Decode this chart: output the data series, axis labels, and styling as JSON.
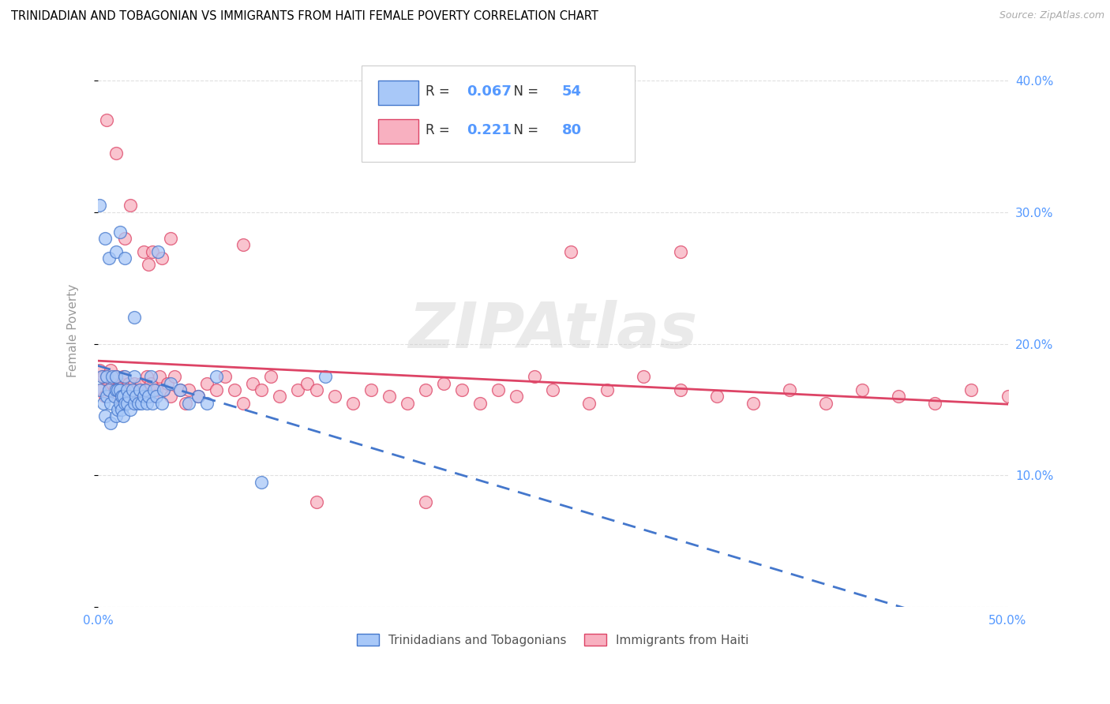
{
  "title": "TRINIDADIAN AND TOBAGONIAN VS IMMIGRANTS FROM HAITI FEMALE POVERTY CORRELATION CHART",
  "source": "Source: ZipAtlas.com",
  "ylabel": "Female Poverty",
  "xlim": [
    0.0,
    0.5
  ],
  "ylim": [
    0.0,
    0.42
  ],
  "legend_r1_val": "0.067",
  "legend_n1_val": "54",
  "legend_r2_val": "0.221",
  "legend_n2_val": "80",
  "series1_color": "#a8c8f8",
  "series2_color": "#f8b0c0",
  "series1_label": "Trinidadians and Tobagonians",
  "series2_label": "Immigrants from Haiti",
  "line1_color": "#4477cc",
  "line2_color": "#dd4466",
  "watermark": "ZIPAtlas",
  "axis_label_color": "#5599ff",
  "background_color": "#ffffff",
  "grid_color": "#cccccc",
  "series1_x": [
    0.001,
    0.002,
    0.003,
    0.004,
    0.005,
    0.005,
    0.006,
    0.007,
    0.007,
    0.008,
    0.009,
    0.01,
    0.01,
    0.01,
    0.011,
    0.011,
    0.012,
    0.012,
    0.013,
    0.013,
    0.014,
    0.014,
    0.015,
    0.015,
    0.016,
    0.016,
    0.017,
    0.018,
    0.019,
    0.02,
    0.02,
    0.021,
    0.022,
    0.023,
    0.024,
    0.025,
    0.026,
    0.027,
    0.028,
    0.029,
    0.03,
    0.031,
    0.032,
    0.033,
    0.035,
    0.036,
    0.04,
    0.045,
    0.05,
    0.055,
    0.06,
    0.065,
    0.09,
    0.125
  ],
  "series1_y": [
    0.165,
    0.175,
    0.155,
    0.145,
    0.16,
    0.175,
    0.165,
    0.14,
    0.155,
    0.175,
    0.16,
    0.145,
    0.165,
    0.175,
    0.15,
    0.165,
    0.155,
    0.165,
    0.15,
    0.16,
    0.145,
    0.16,
    0.155,
    0.175,
    0.155,
    0.165,
    0.16,
    0.15,
    0.165,
    0.155,
    0.175,
    0.16,
    0.155,
    0.165,
    0.155,
    0.16,
    0.165,
    0.155,
    0.16,
    0.175,
    0.155,
    0.165,
    0.16,
    0.27,
    0.155,
    0.165,
    0.17,
    0.165,
    0.155,
    0.16,
    0.155,
    0.175,
    0.095,
    0.175
  ],
  "series1_outliers_x": [
    0.001,
    0.004,
    0.006,
    0.01,
    0.012,
    0.015,
    0.02
  ],
  "series1_outliers_y": [
    0.305,
    0.28,
    0.265,
    0.27,
    0.285,
    0.265,
    0.22
  ],
  "series2_x": [
    0.001,
    0.002,
    0.003,
    0.004,
    0.005,
    0.006,
    0.007,
    0.008,
    0.009,
    0.01,
    0.011,
    0.012,
    0.013,
    0.014,
    0.015,
    0.016,
    0.017,
    0.018,
    0.019,
    0.02,
    0.021,
    0.022,
    0.023,
    0.024,
    0.025,
    0.026,
    0.027,
    0.028,
    0.029,
    0.03,
    0.032,
    0.034,
    0.036,
    0.038,
    0.04,
    0.042,
    0.045,
    0.048,
    0.05,
    0.055,
    0.06,
    0.065,
    0.07,
    0.075,
    0.08,
    0.085,
    0.09,
    0.095,
    0.1,
    0.11,
    0.115,
    0.12,
    0.13,
    0.14,
    0.15,
    0.16,
    0.17,
    0.18,
    0.19,
    0.2,
    0.21,
    0.22,
    0.23,
    0.24,
    0.25,
    0.26,
    0.27,
    0.28,
    0.3,
    0.32,
    0.34,
    0.36,
    0.38,
    0.4,
    0.42,
    0.44,
    0.46,
    0.48,
    0.5,
    0.51
  ],
  "series2_y": [
    0.18,
    0.165,
    0.175,
    0.16,
    0.175,
    0.165,
    0.18,
    0.17,
    0.165,
    0.175,
    0.16,
    0.17,
    0.165,
    0.175,
    0.16,
    0.165,
    0.17,
    0.165,
    0.16,
    0.17,
    0.165,
    0.16,
    0.165,
    0.17,
    0.16,
    0.165,
    0.175,
    0.165,
    0.17,
    0.16,
    0.165,
    0.175,
    0.165,
    0.17,
    0.16,
    0.175,
    0.165,
    0.155,
    0.165,
    0.16,
    0.17,
    0.165,
    0.175,
    0.165,
    0.155,
    0.17,
    0.165,
    0.175,
    0.16,
    0.165,
    0.17,
    0.165,
    0.16,
    0.155,
    0.165,
    0.16,
    0.155,
    0.165,
    0.17,
    0.165,
    0.155,
    0.165,
    0.16,
    0.175,
    0.165,
    0.27,
    0.155,
    0.165,
    0.175,
    0.165,
    0.16,
    0.155,
    0.165,
    0.155,
    0.165,
    0.16,
    0.155,
    0.165,
    0.16,
    0.155
  ],
  "series2_outliers_x": [
    0.005,
    0.01,
    0.015,
    0.018,
    0.025,
    0.028,
    0.03,
    0.035,
    0.04,
    0.08,
    0.12,
    0.18,
    0.32
  ],
  "series2_outliers_y": [
    0.37,
    0.345,
    0.28,
    0.305,
    0.27,
    0.26,
    0.27,
    0.265,
    0.28,
    0.275,
    0.08,
    0.08,
    0.27
  ]
}
